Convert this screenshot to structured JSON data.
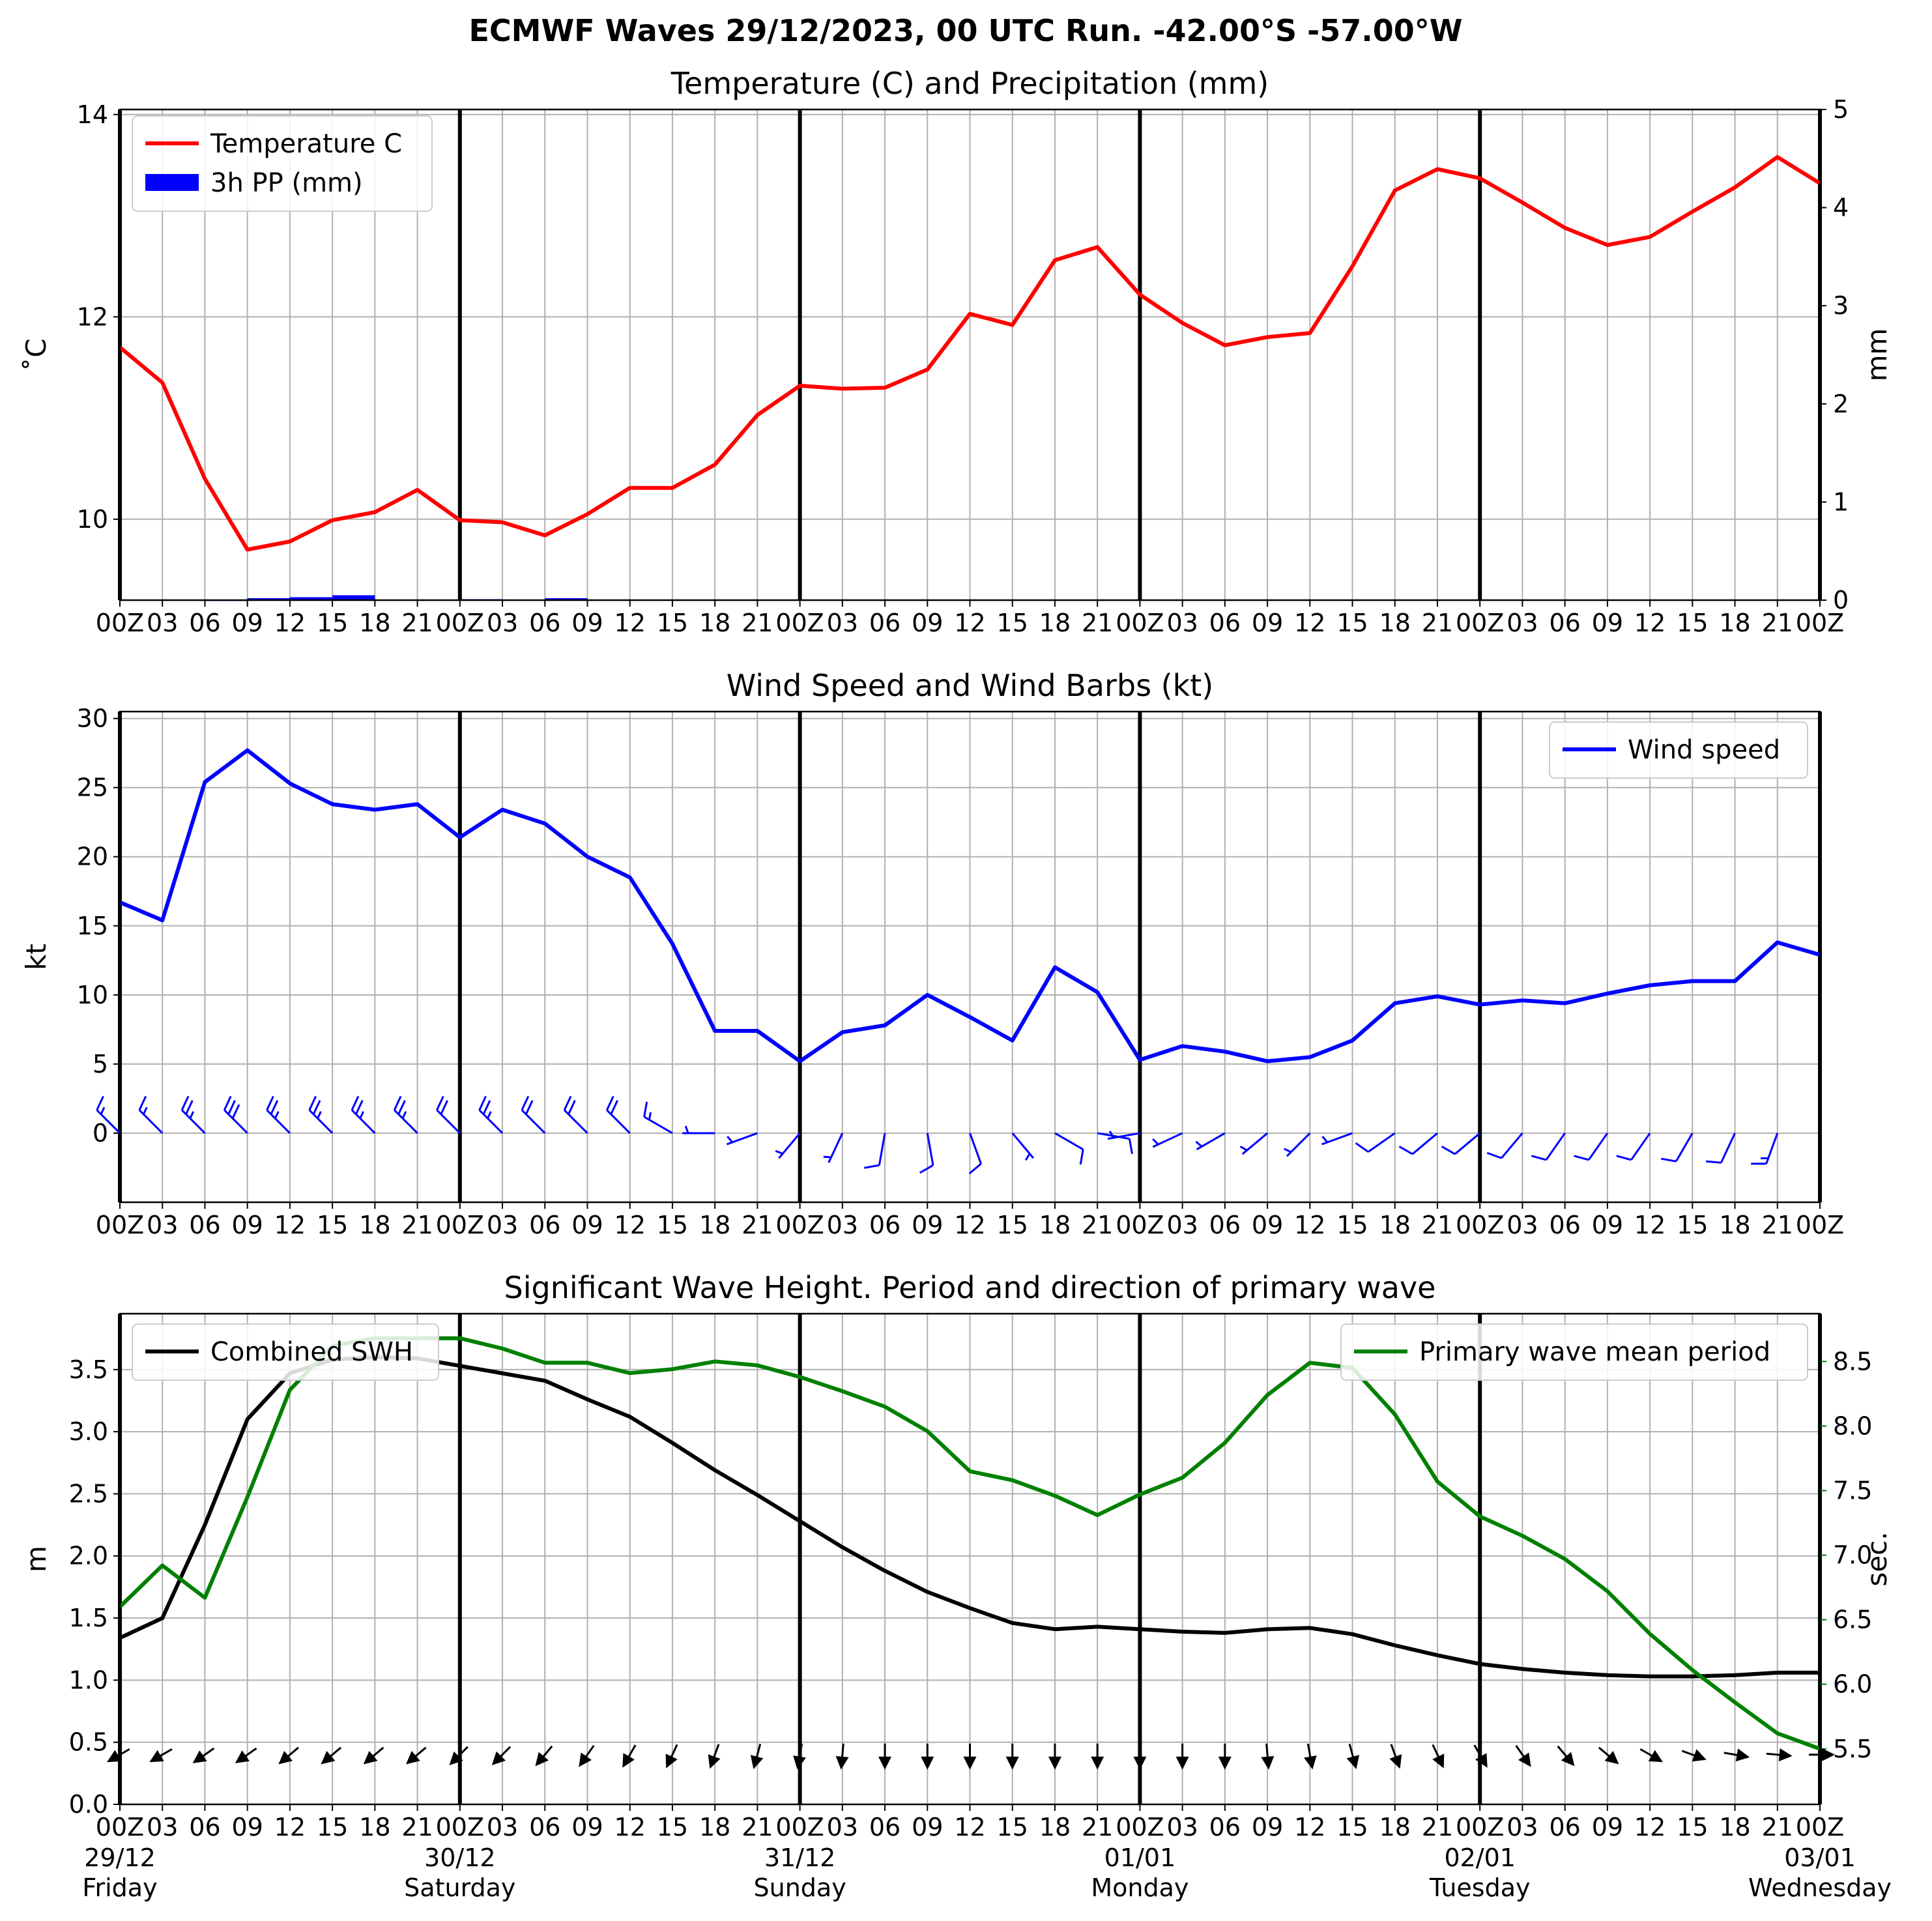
{
  "title": "ECMWF Waves 29/12/2023, 00 UTC Run. -42.00°S -57.00°W",
  "x_tick_labels": [
    "00Z",
    "03",
    "06",
    "09",
    "12",
    "15",
    "18",
    "21",
    "00Z",
    "03",
    "06",
    "09",
    "12",
    "15",
    "18",
    "21",
    "00Z",
    "03",
    "06",
    "09",
    "12",
    "15",
    "18",
    "21",
    "00Z",
    "03",
    "06",
    "09",
    "12",
    "15",
    "18",
    "21",
    "00Z",
    "03",
    "06",
    "09",
    "12",
    "15",
    "18",
    "21",
    "00Z"
  ],
  "day_labels": [
    {
      "date": "29/12",
      "day": "Friday"
    },
    {
      "date": "30/12",
      "day": "Saturday"
    },
    {
      "date": "31/12",
      "day": "Sunday"
    },
    {
      "date": "01/01",
      "day": "Monday"
    },
    {
      "date": "02/01",
      "day": "Tuesday"
    },
    {
      "date": "03/01",
      "day": "Wednesday"
    }
  ],
  "colors": {
    "temperature": "#ff0000",
    "precipitation": "#0000ff",
    "wind": "#0000ff",
    "swh": "#000000",
    "period": "#008000",
    "grid": "#b0b0b0"
  },
  "chart_data": [
    {
      "type": "line",
      "title": "Temperature (C) and Precipitation (mm)",
      "x": [
        "00Z",
        "03",
        "06",
        "09",
        "12",
        "15",
        "18",
        "21",
        "00Z",
        "03",
        "06",
        "09",
        "12",
        "15",
        "18",
        "21",
        "00Z",
        "03",
        "06",
        "09",
        "12",
        "15",
        "18",
        "21",
        "00Z",
        "03",
        "06",
        "09",
        "12",
        "15",
        "18",
        "21",
        "00Z",
        "03",
        "06",
        "09",
        "12",
        "15",
        "18",
        "21",
        "00Z"
      ],
      "ylabel": "$^\\circ$C",
      "y2label": "mm",
      "ylim": [
        9.2,
        14.05
      ],
      "yticks": [
        10,
        12,
        14
      ],
      "y2lim": [
        0,
        5
      ],
      "y2ticks": [
        0,
        1,
        2,
        3,
        4,
        5
      ],
      "grid": true,
      "legend": "top-left",
      "series": [
        {
          "name": "Temperature C",
          "axis": "left",
          "type": "line",
          "values": [
            11.7,
            11.35,
            10.4,
            9.7,
            9.78,
            9.99,
            10.07,
            10.29,
            9.99,
            9.97,
            9.84,
            10.05,
            10.31,
            10.31,
            10.54,
            11.03,
            11.32,
            11.29,
            11.3,
            11.48,
            12.03,
            11.92,
            12.56,
            12.69,
            12.22,
            11.94,
            11.72,
            11.8,
            11.84,
            12.5,
            13.25,
            13.46,
            13.37,
            13.13,
            12.88,
            12.71,
            12.79,
            13.04,
            13.28,
            13.58,
            13.32
          ]
        },
        {
          "name": "3h PP (mm)",
          "axis": "right",
          "type": "bar",
          "values": [
            0,
            0,
            0.005,
            0.02,
            0.03,
            0.05,
            0,
            0,
            0.01,
            0,
            0.02,
            0,
            0,
            0,
            0,
            0,
            0,
            0,
            0,
            0,
            0,
            0,
            0,
            0,
            0,
            0,
            0,
            0,
            0,
            0,
            0,
            0,
            0,
            0,
            0,
            0,
            0,
            0,
            0,
            0,
            0
          ]
        }
      ]
    },
    {
      "type": "line",
      "title": "Wind Speed and Wind Barbs (kt)",
      "x": [
        "00Z",
        "03",
        "06",
        "09",
        "12",
        "15",
        "18",
        "21",
        "00Z",
        "03",
        "06",
        "09",
        "12",
        "15",
        "18",
        "21",
        "00Z",
        "03",
        "06",
        "09",
        "12",
        "15",
        "18",
        "21",
        "00Z",
        "03",
        "06",
        "09",
        "12",
        "15",
        "18",
        "21",
        "00Z",
        "03",
        "06",
        "09",
        "12",
        "15",
        "18",
        "21",
        "00Z"
      ],
      "ylabel": "kt",
      "ylim": [
        -5,
        30.5
      ],
      "yticks": [
        0,
        5,
        10,
        15,
        20,
        25,
        30
      ],
      "grid": true,
      "legend": "top-right",
      "series": [
        {
          "name": "Wind speed",
          "values": [
            16.7,
            15.4,
            25.4,
            27.7,
            25.3,
            23.8,
            23.4,
            23.8,
            21.4,
            23.4,
            22.4,
            20.0,
            18.5,
            13.7,
            7.4,
            7.4,
            5.2,
            7.3,
            7.8,
            10.0,
            8.4,
            6.7,
            12.0,
            10.2,
            5.3,
            6.3,
            5.9,
            5.2,
            5.5,
            6.7,
            9.4,
            9.9,
            9.3,
            9.6,
            9.4,
            10.1,
            10.7,
            11.0,
            11.0,
            13.8,
            12.9
          ]
        },
        {
          "name": "wind_direction_deg",
          "values": [
            315,
            315,
            315,
            315,
            315,
            315,
            315,
            315,
            315,
            315,
            315,
            315,
            315,
            300,
            270,
            250,
            220,
            205,
            190,
            170,
            160,
            140,
            120,
            100,
            260,
            245,
            240,
            230,
            225,
            250,
            235,
            230,
            230,
            220,
            215,
            215,
            215,
            210,
            205,
            200,
            210
          ]
        }
      ]
    },
    {
      "type": "line",
      "title": "Significant Wave Height. Period and direction of primary wave",
      "x": [
        "00Z",
        "03",
        "06",
        "09",
        "12",
        "15",
        "18",
        "21",
        "00Z",
        "03",
        "06",
        "09",
        "12",
        "15",
        "18",
        "21",
        "00Z",
        "03",
        "06",
        "09",
        "12",
        "15",
        "18",
        "21",
        "00Z",
        "03",
        "06",
        "09",
        "12",
        "15",
        "18",
        "21",
        "00Z",
        "03",
        "06",
        "09",
        "12",
        "15",
        "18",
        "21",
        "00Z"
      ],
      "ylabel": "m",
      "y2label": "sec.",
      "ylim": [
        0,
        3.95
      ],
      "yticks": [
        0.0,
        0.5,
        1.0,
        1.5,
        2.0,
        2.5,
        3.0,
        3.5
      ],
      "y2lim": [
        5.07,
        8.87
      ],
      "y2ticks": [
        5.5,
        6.0,
        6.5,
        7.0,
        7.5,
        8.0,
        8.5
      ],
      "grid": true,
      "series": [
        {
          "name": "Combined SWH",
          "axis": "left",
          "legend": "top-left",
          "values": [
            1.34,
            1.5,
            2.25,
            3.1,
            3.47,
            3.58,
            3.6,
            3.59,
            3.53,
            3.47,
            3.41,
            3.26,
            3.12,
            2.91,
            2.69,
            2.49,
            2.28,
            2.07,
            1.88,
            1.71,
            1.58,
            1.46,
            1.41,
            1.43,
            1.41,
            1.39,
            1.38,
            1.41,
            1.42,
            1.37,
            1.28,
            1.2,
            1.13,
            1.09,
            1.06,
            1.04,
            1.03,
            1.03,
            1.04,
            1.06,
            1.06
          ]
        },
        {
          "name": "Primary wave mean period",
          "axis": "right",
          "legend": "top-right",
          "values": [
            6.6,
            6.92,
            6.67,
            7.45,
            8.28,
            8.62,
            8.68,
            8.68,
            8.68,
            8.6,
            8.49,
            8.49,
            8.41,
            8.44,
            8.5,
            8.47,
            8.38,
            8.27,
            8.15,
            7.96,
            7.65,
            7.58,
            7.46,
            7.31,
            7.47,
            7.6,
            7.87,
            8.24,
            8.49,
            8.45,
            8.09,
            7.57,
            7.3,
            7.15,
            6.97,
            6.72,
            6.39,
            6.11,
            5.86,
            5.62,
            5.5
          ]
        },
        {
          "name": "primary_wave_direction_deg",
          "values": [
            240,
            240,
            235,
            235,
            230,
            230,
            230,
            230,
            225,
            225,
            220,
            215,
            210,
            205,
            200,
            195,
            190,
            185,
            180,
            180,
            180,
            180,
            180,
            180,
            180,
            180,
            180,
            175,
            170,
            165,
            160,
            155,
            150,
            145,
            140,
            130,
            120,
            110,
            100,
            95,
            90
          ]
        }
      ]
    }
  ]
}
